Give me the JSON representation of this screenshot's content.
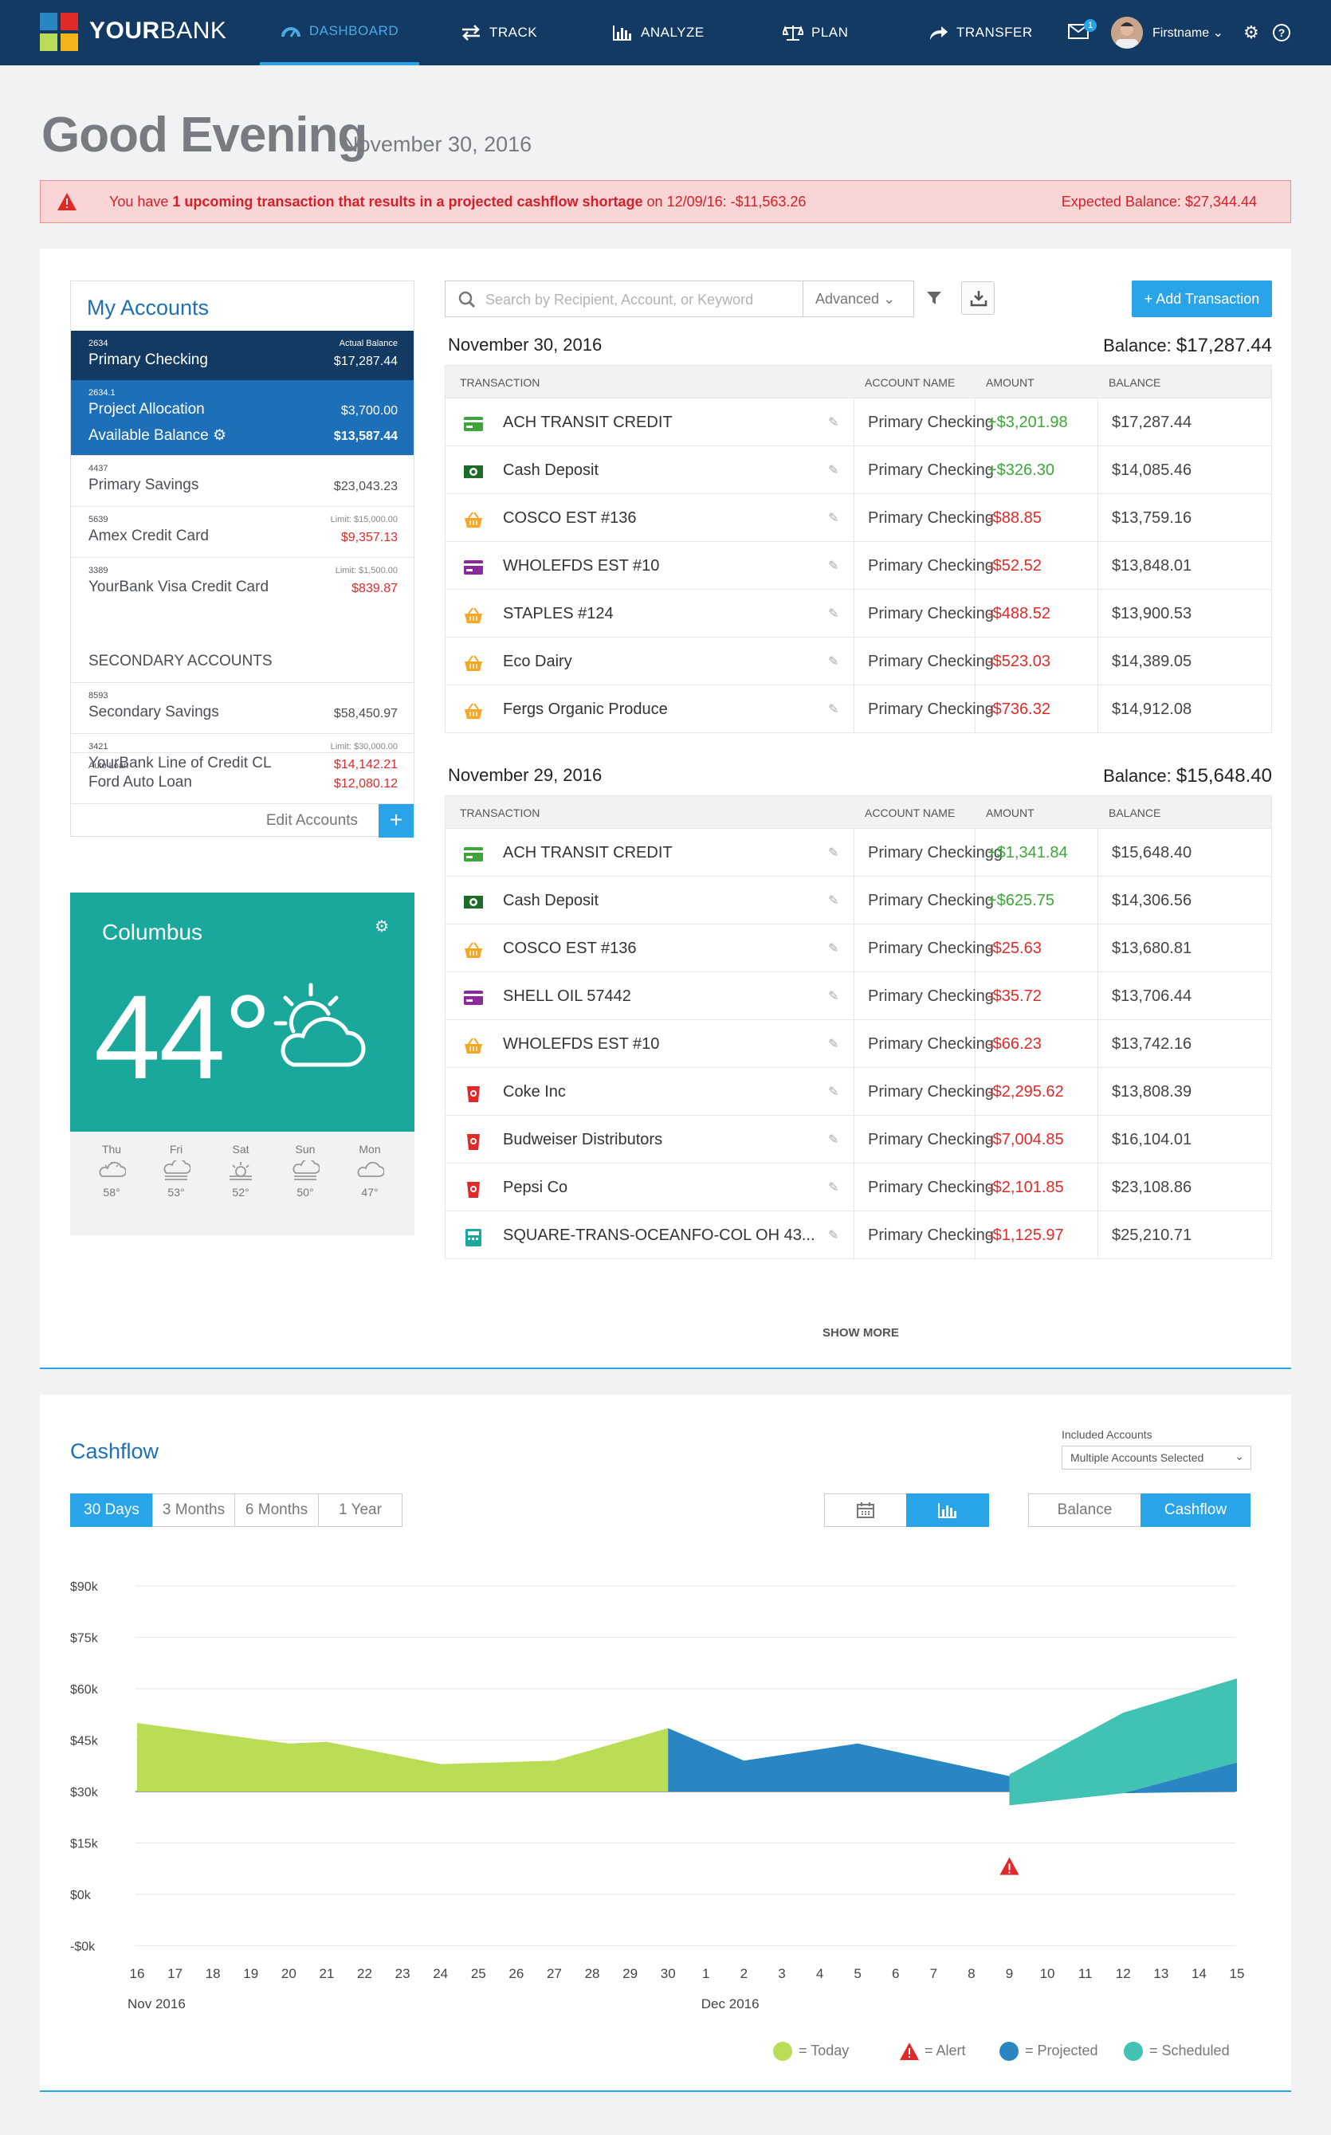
{
  "brand": {
    "your": "YOUR",
    "bank": "BANK"
  },
  "nav": {
    "dashboard": "DASHBOARD",
    "track": "TRACK",
    "analyze": "ANALYZE",
    "plan": "PLAN",
    "transfer": "TRANSFER",
    "mail_count": "1",
    "user": "Firstname"
  },
  "greeting": {
    "title": "Good Evening",
    "date": "November 30, 2016"
  },
  "alert": {
    "prefix": "You have ",
    "bold": "1 upcoming transaction that results in a projected cashflow shortage",
    "suffix": " on 12/09/16: -$11,563.26",
    "expected": "Expected Balance: $27,344.44"
  },
  "accounts": {
    "title": "My Accounts",
    "primary": [
      {
        "num": "2634",
        "name": "Primary Checking",
        "limit": "Actual Balance",
        "balance": "$17,287.44"
      },
      {
        "num": "2634.1",
        "name": "Project Allocation",
        "balance": "$3,700.00",
        "sub_label": "Available Balance",
        "sub_balance": "$13,587.44"
      },
      {
        "num": "4437",
        "name": "Primary Savings",
        "balance": "$23,043.23"
      },
      {
        "num": "5639",
        "name": "Amex Credit Card",
        "limit": "Limit: $15,000.00",
        "balance": "$9,357.13"
      },
      {
        "num": "3389",
        "name": "YourBank Visa Credit Card",
        "limit": "Limit: $1,500.00",
        "balance": "$839.87"
      }
    ],
    "secondary_title": "SECONDARY ACCOUNTS",
    "secondary": [
      {
        "num": "8593",
        "name": "Secondary Savings",
        "balance": "$58,450.97"
      },
      {
        "num": "3421",
        "name": "YourBank Line of Credit CL",
        "limit": "Limit: $30,000.00",
        "balance": "$14,142.21"
      },
      {
        "num": "Auto Loan",
        "name": "Ford Auto Loan",
        "balance": "$12,080.12"
      }
    ],
    "edit": "Edit Accounts",
    "plus": "+"
  },
  "weather": {
    "city": "Columbus",
    "temp": "44°",
    "forecast": [
      {
        "day": "Thu",
        "temp": "58°"
      },
      {
        "day": "Fri",
        "temp": "53°"
      },
      {
        "day": "Sat",
        "temp": "52°"
      },
      {
        "day": "Sun",
        "temp": "50°"
      },
      {
        "day": "Mon",
        "temp": "47°"
      }
    ]
  },
  "tx": {
    "search_placeholder": "Search by Recipient, Account, or Keyword",
    "advanced": "Advanced",
    "add": "+ Add Transaction",
    "headers": {
      "transaction": "TRANSACTION",
      "account": "ACCOUNT NAME",
      "amount": "AMOUNT",
      "balance": "BALANCE"
    },
    "balance_label": "Balance: ",
    "days": [
      {
        "date": "November 30, 2016",
        "balance": "$17,287.44",
        "rows": [
          {
            "icon": "card",
            "desc": "ACH TRANSIT CREDIT",
            "account": "Primary Checking",
            "amount": "+$3,201.98",
            "pos": true,
            "balance": "$17,287.44"
          },
          {
            "icon": "cash",
            "desc": "Cash Deposit",
            "account": "Primary Checking",
            "amount": "+$326.30",
            "pos": true,
            "balance": "$14,085.46"
          },
          {
            "icon": "basket",
            "desc": "COSCO EST #136",
            "account": "Primary Checking",
            "amount": "-$88.85",
            "pos": false,
            "balance": "$13,759.16"
          },
          {
            "icon": "card-purple",
            "desc": "WHOLEFDS EST #10",
            "account": "Primary Checking",
            "amount": "-$52.52",
            "pos": false,
            "balance": "$13,848.01"
          },
          {
            "icon": "basket",
            "desc": "STAPLES #124",
            "account": "Primary Checking",
            "amount": "-$488.52",
            "pos": false,
            "balance": "$13,900.53"
          },
          {
            "icon": "basket",
            "desc": "Eco Dairy",
            "account": "Primary Checking",
            "amount": "-$523.03",
            "pos": false,
            "balance": "$14,389.05"
          },
          {
            "icon": "basket",
            "desc": "Fergs Organic Produce",
            "account": "Primary Checking",
            "amount": "-$736.32",
            "pos": false,
            "balance": "$14,912.08"
          }
        ]
      },
      {
        "date": "November 29, 2016",
        "balance": "$15,648.40",
        "rows": [
          {
            "icon": "card",
            "desc": "ACH TRANSIT CREDIT",
            "account": "Primary Checkingg",
            "amount": "+$1,341.84",
            "pos": true,
            "balance": "$15,648.40"
          },
          {
            "icon": "cash",
            "desc": "Cash Deposit",
            "account": "Primary Checking",
            "amount": "+$625.75",
            "pos": true,
            "balance": "$14,306.56"
          },
          {
            "icon": "basket",
            "desc": "COSCO EST #136",
            "account": "Primary Checking",
            "amount": "-$25.63",
            "pos": false,
            "balance": "$13,680.81"
          },
          {
            "icon": "card-purple",
            "desc": "SHELL OIL 57442",
            "account": "Primary Checking",
            "amount": "-$35.72",
            "pos": false,
            "balance": "$13,706.44"
          },
          {
            "icon": "basket",
            "desc": "WHOLEFDS EST #10",
            "account": "Primary Checking",
            "amount": "-$66.23",
            "pos": false,
            "balance": "$13,742.16"
          },
          {
            "icon": "cup",
            "desc": "Coke Inc",
            "account": "Primary Checking",
            "amount": "-$2,295.62",
            "pos": false,
            "balance": "$13,808.39"
          },
          {
            "icon": "cup",
            "desc": "Budweiser Distributors",
            "account": "Primary Checking",
            "amount": "-$7,004.85",
            "pos": false,
            "balance": "$16,104.01"
          },
          {
            "icon": "cup",
            "desc": "Pepsi Co",
            "account": "Primary Checking",
            "amount": "-$2,101.85",
            "pos": false,
            "balance": "$23,108.86"
          },
          {
            "icon": "register",
            "desc": "SQUARE-TRANS-OCEANFO-COL OH 43...",
            "account": "Primary Checking",
            "amount": "-$1,125.97",
            "pos": false,
            "balance": "$25,210.71"
          }
        ]
      }
    ],
    "show_more": "SHOW MORE"
  },
  "cashflow": {
    "title": "Cashflow",
    "included_label": "Included Accounts",
    "included_value": "Multiple Accounts Selected",
    "ranges": [
      "30 Days",
      "3 Months",
      "6 Months",
      "1 Year"
    ],
    "active_range": "30 Days",
    "views": [
      "Balance",
      "Cashflow"
    ],
    "active_view": "Cashflow",
    "legend": [
      "= Today",
      "= Alert",
      "= Projected",
      "= Scheduled"
    ]
  },
  "colors": {
    "accent": "#29a4e8",
    "nav_bg": "#133a63",
    "green_area": "#b9dd56",
    "blue_area": "#2a86c2",
    "teal_area": "#42c2b3",
    "alert_red": "#e02a2a"
  },
  "chart_data": {
    "type": "area",
    "y_ticks": [
      "$90k",
      "$75k",
      "$60k",
      "$45k",
      "$30k",
      "$15k",
      "$0k",
      "-$0k"
    ],
    "x": [
      "16",
      "17",
      "18",
      "19",
      "20",
      "21",
      "22",
      "23",
      "24",
      "25",
      "26",
      "27",
      "28",
      "29",
      "30",
      "1",
      "2",
      "3",
      "4",
      "5",
      "6",
      "7",
      "8",
      "9",
      "10",
      "11",
      "12",
      "13",
      "14",
      "15"
    ],
    "x_months": [
      "Nov 2016",
      "Dec 2016"
    ],
    "ylim": [
      -15000,
      90000
    ],
    "series": [
      {
        "name": "Today",
        "x": [
          "16",
          "20",
          "21",
          "24",
          "27",
          "30"
        ],
        "values": [
          50000,
          44000,
          44500,
          38000,
          39000,
          48500
        ]
      },
      {
        "name": "Projected",
        "x": [
          "30",
          "2",
          "5",
          "9",
          "12",
          "15"
        ],
        "values": [
          48500,
          39000,
          44000,
          34500,
          29500,
          38500
        ]
      },
      {
        "name": "Scheduled",
        "x": [
          "9",
          "12",
          "15"
        ],
        "values": [
          35000,
          53000,
          63000
        ]
      }
    ],
    "alert": {
      "x": "9"
    }
  }
}
